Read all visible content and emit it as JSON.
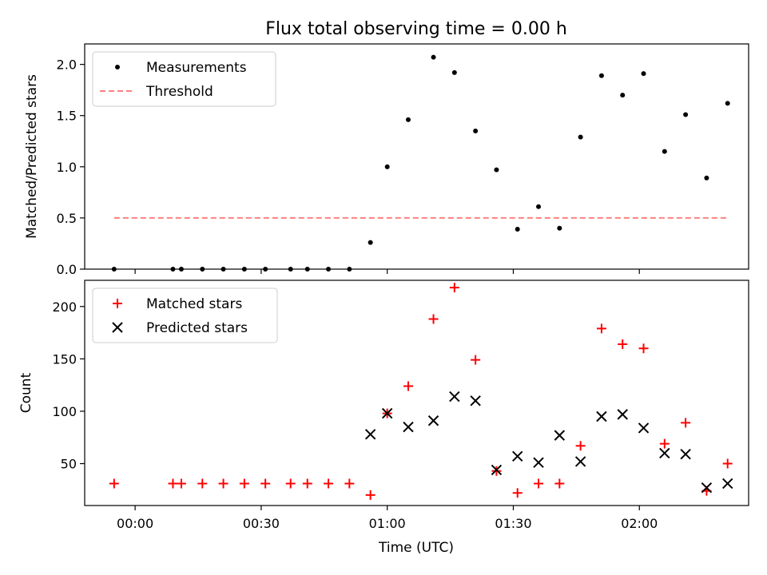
{
  "chart_data": {
    "title": "Flux total observing time = 0.00 h",
    "xlabel": "Time (UTC)",
    "x_ticks": [
      "00:00",
      "00:30",
      "01:00",
      "01:30",
      "02:00"
    ],
    "x_range": [
      "23:48",
      "02:26"
    ],
    "grid": false,
    "colors": {
      "measurements": "#000000",
      "threshold": "#ff8080",
      "matched": "#ff0000",
      "predicted": "#000000"
    },
    "panels": [
      {
        "type": "scatter",
        "ylabel": "Matched/Predicted stars",
        "ylim": [
          0,
          2.2
        ],
        "y_ticks": [
          "0.0",
          "0.5",
          "1.0",
          "1.5",
          "2.0"
        ],
        "legend": "top-left",
        "series": [
          {
            "name": "Measurements",
            "marker": "dot",
            "x": [
              "23:55",
              "00:09",
              "00:11",
              "00:16",
              "00:21",
              "00:26",
              "00:31",
              "00:37",
              "00:41",
              "00:46",
              "00:51",
              "00:56",
              "01:00",
              "01:05",
              "01:11",
              "01:16",
              "01:21",
              "01:26",
              "01:31",
              "01:36",
              "01:41",
              "01:46",
              "01:51",
              "01:56",
              "02:01",
              "02:06",
              "02:11",
              "02:16",
              "02:21"
            ],
            "values": [
              0.0,
              0.0,
              0.0,
              0.0,
              0.0,
              0.0,
              0.0,
              0.0,
              0.0,
              0.0,
              0.0,
              0.26,
              1.0,
              1.46,
              2.07,
              1.92,
              1.35,
              0.97,
              0.39,
              0.61,
              0.4,
              1.29,
              1.89,
              1.7,
              1.91,
              1.15,
              1.51,
              0.89,
              1.62
            ]
          },
          {
            "name": "Threshold",
            "type": "line",
            "style": "dashed",
            "x": [
              "23:55",
              "02:21"
            ],
            "values": [
              0.5,
              0.5
            ]
          }
        ]
      },
      {
        "type": "scatter",
        "ylabel": "Count",
        "ylim": [
          10,
          225
        ],
        "y_ticks": [
          "50",
          "100",
          "150",
          "200"
        ],
        "legend": "top-left",
        "series": [
          {
            "name": "Matched stars",
            "marker": "plus",
            "x": [
              "23:55",
              "00:09",
              "00:11",
              "00:16",
              "00:21",
              "00:26",
              "00:31",
              "00:37",
              "00:41",
              "00:46",
              "00:51",
              "00:56",
              "01:00",
              "01:05",
              "01:11",
              "01:16",
              "01:21",
              "01:26",
              "01:31",
              "01:36",
              "01:41",
              "01:46",
              "01:51",
              "01:56",
              "02:01",
              "02:06",
              "02:11",
              "02:16",
              "02:21"
            ],
            "values": [
              31,
              31,
              31,
              31,
              31,
              31,
              31,
              31,
              31,
              31,
              31,
              20,
              98,
              124,
              188,
              218,
              149,
              43,
              22,
              31,
              31,
              67,
              179,
              164,
              160,
              69,
              89,
              24,
              50
            ]
          },
          {
            "name": "Predicted stars",
            "marker": "x",
            "x": [
              "00:56",
              "01:00",
              "01:05",
              "01:11",
              "01:16",
              "01:21",
              "01:26",
              "01:31",
              "01:36",
              "01:41",
              "01:46",
              "01:51",
              "01:56",
              "02:01",
              "02:06",
              "02:11",
              "02:16",
              "02:21"
            ],
            "values": [
              78,
              98,
              85,
              91,
              114,
              110,
              44,
              57,
              51,
              77,
              52,
              95,
              97,
              84,
              60,
              59,
              27,
              31
            ]
          }
        ]
      }
    ]
  }
}
